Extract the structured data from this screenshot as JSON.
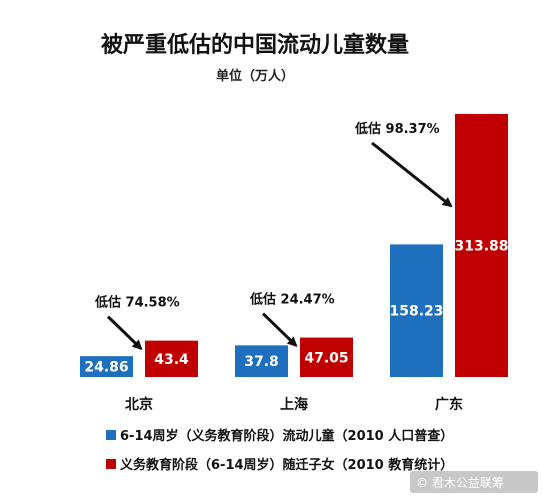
{
  "chart_data": {
    "type": "bar",
    "title": "被严重低估的中国流动儿童数量",
    "subtitle": "单位（万人）",
    "categories": [
      "北京",
      "上海",
      "广东"
    ],
    "series": [
      {
        "name": "6-14周岁（义务教育阶段）流动儿童（2010 人口普查）",
        "color": "#1f6fbf",
        "values": [
          24.86,
          37.8,
          158.23
        ]
      },
      {
        "name": "义务教育阶段（6-14周岁）随迁子女（2010 教育统计）",
        "color": "#c00000",
        "values": [
          43.4,
          47.05,
          313.88
        ]
      }
    ],
    "value_labels": [
      [
        "24.86",
        "37.8",
        "158.23"
      ],
      [
        "43.4",
        "47.05",
        "313.88"
      ]
    ],
    "annotations": [
      "低估 74.58%",
      "低估 24.47%",
      "低估 98.37%"
    ],
    "ylim": [
      0,
      320
    ],
    "grid": false,
    "legend_position": "bottom"
  },
  "watermark": "© 君木公益联筹"
}
